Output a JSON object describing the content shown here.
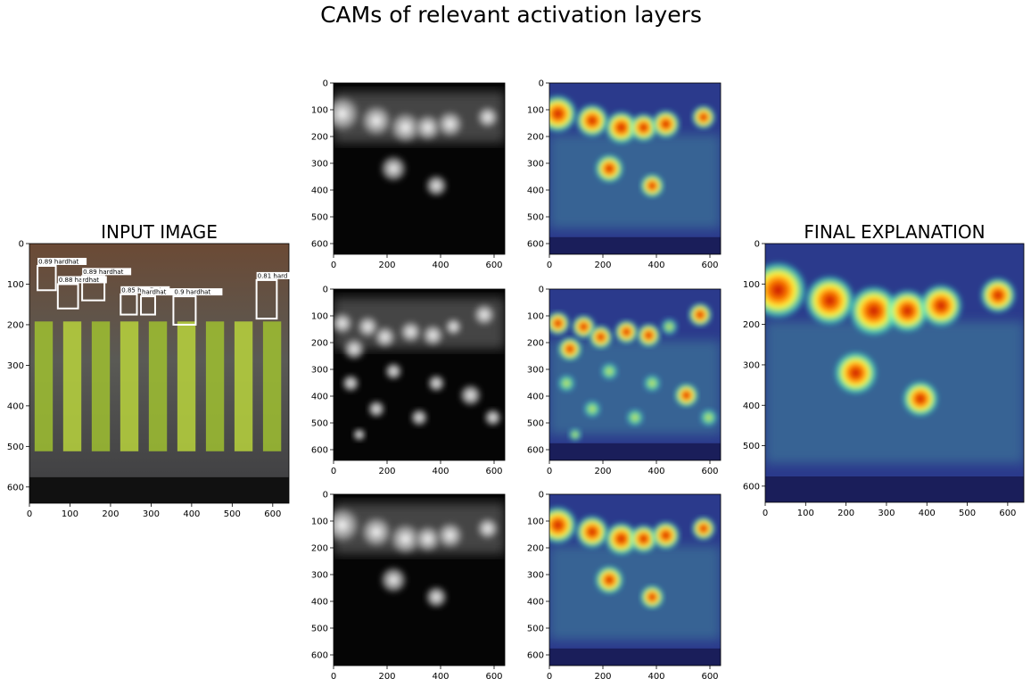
{
  "title": "CAMs of relevant activation layers",
  "panels": [
    {
      "title": "INPUT IMAGE",
      "xlim": [
        0,
        640
      ],
      "ylim": [
        640,
        0
      ],
      "xticks": [
        0,
        100,
        200,
        300,
        400,
        500,
        600
      ],
      "yticks": [
        0,
        100,
        200,
        300,
        400,
        500,
        600
      ],
      "annotations": [
        "0.89 hardhat",
        "0.88 hardhat",
        "0.89 hardhat",
        "0.85 hardhat",
        "hardhat",
        "0.9 hardhat",
        "0.81 hard"
      ]
    },
    {
      "xlim": [
        0,
        640
      ],
      "ylim": [
        640,
        0
      ],
      "xticks": [
        0,
        200,
        400,
        600
      ],
      "yticks": [
        0,
        100,
        200,
        300,
        400,
        500,
        600
      ]
    },
    {
      "xlim": [
        0,
        640
      ],
      "ylim": [
        640,
        0
      ],
      "xticks": [
        0,
        200,
        400,
        600
      ],
      "yticks": [
        0,
        100,
        200,
        300,
        400,
        500,
        600
      ]
    },
    {
      "xlim": [
        0,
        640
      ],
      "ylim": [
        640,
        0
      ],
      "xticks": [
        0,
        200,
        400,
        600
      ],
      "yticks": [
        0,
        100,
        200,
        300,
        400,
        500,
        600
      ]
    },
    {
      "xlim": [
        0,
        640
      ],
      "ylim": [
        640,
        0
      ],
      "xticks": [
        0,
        200,
        400,
        600
      ],
      "yticks": [
        0,
        100,
        200,
        300,
        400,
        500,
        600
      ]
    },
    {
      "xlim": [
        0,
        640
      ],
      "ylim": [
        640,
        0
      ],
      "xticks": [
        0,
        200,
        400,
        600
      ],
      "yticks": [
        0,
        100,
        200,
        300,
        400,
        500,
        600
      ]
    },
    {
      "xlim": [
        0,
        640
      ],
      "ylim": [
        640,
        0
      ],
      "xticks": [
        0,
        200,
        400,
        600
      ],
      "yticks": [
        0,
        100,
        200,
        300,
        400,
        500,
        600
      ]
    },
    {
      "title": "FINAL EXPLANATION",
      "xlim": [
        0,
        640
      ],
      "ylim": [
        640,
        0
      ],
      "xticks": [
        0,
        100,
        200,
        300,
        400,
        500,
        600
      ],
      "yticks": [
        0,
        100,
        200,
        300,
        400,
        500,
        600
      ]
    }
  ]
}
